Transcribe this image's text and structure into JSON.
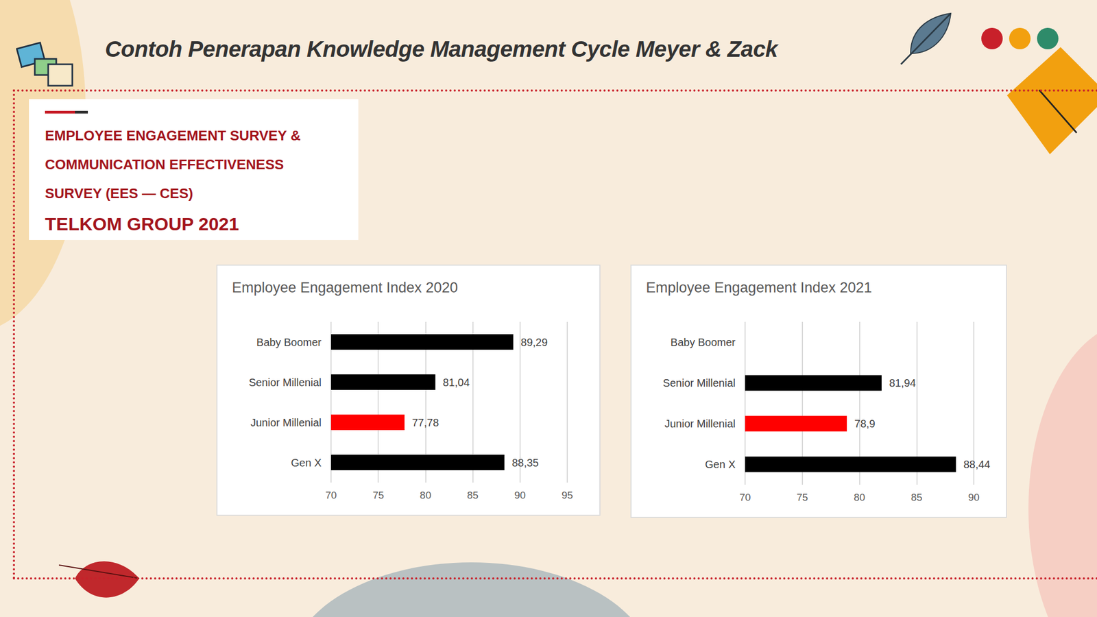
{
  "header": {
    "title": "Contoh Penerapan Knowledge Management Cycle Meyer & Zack"
  },
  "box": {
    "lines": [
      "EMPLOYEE ENGAGEMENT SURVEY &",
      "COMMUNICATION EFFECTIVENESS",
      "SURVEY (EES — CES)"
    ],
    "subtitle": "TELKOM GROUP 2021"
  },
  "chart_data": [
    {
      "type": "bar",
      "title": "Employee Engagement Index 2020",
      "orientation": "horizontal",
      "categories": [
        "Baby Boomer",
        "Senior Millenial",
        "Junior Millenial",
        "Gen X"
      ],
      "values": [
        89.29,
        81.04,
        77.78,
        88.35
      ],
      "value_labels": [
        "89,29",
        "81,04",
        "77,78",
        "88,35"
      ],
      "colors": [
        "#000000",
        "#000000",
        "#ff0000",
        "#000000"
      ],
      "xlim": [
        70,
        95
      ],
      "xticks": [
        70,
        75,
        80,
        85,
        90,
        95
      ],
      "grid": true,
      "data_labels": true
    },
    {
      "type": "bar",
      "title": "Employee Engagement Index 2021",
      "orientation": "horizontal",
      "categories": [
        "Baby Boomer",
        "Senior Millenial",
        "Junior Millenial",
        "Gen X"
      ],
      "values": [
        null,
        81.94,
        78.9,
        88.44
      ],
      "value_labels": [
        null,
        "81,94",
        "78,9",
        "88,44"
      ],
      "colors": [
        "#000000",
        "#000000",
        "#ff0000",
        "#000000"
      ],
      "xlim": [
        70,
        90
      ],
      "xticks": [
        70,
        75,
        80,
        85,
        90
      ],
      "grid": true,
      "data_labels": true
    }
  ]
}
